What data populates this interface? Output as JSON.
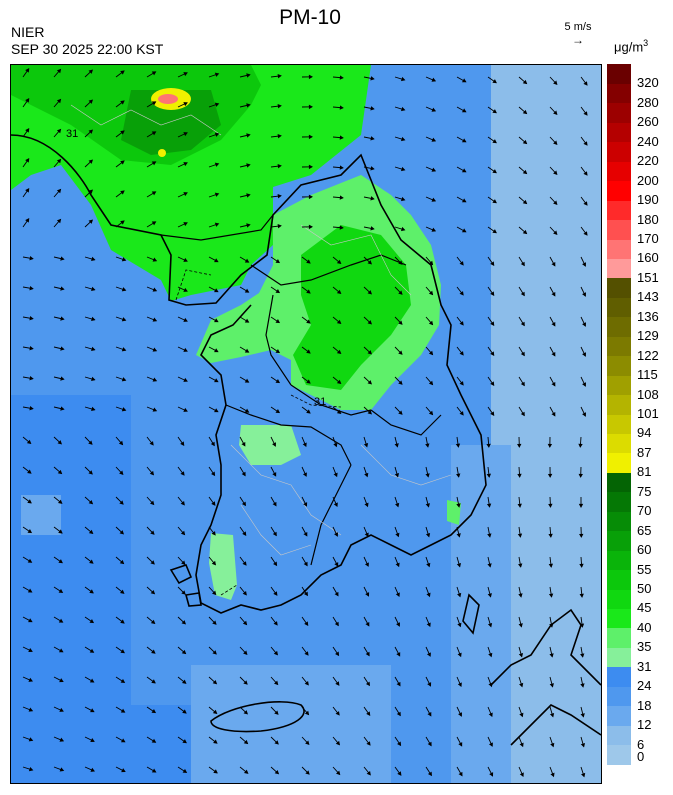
{
  "header": {
    "title": "PM-10",
    "org": "NIER",
    "datetime": "SEP 30 2025 22:00 KST",
    "wind_ref_label": "5 m/s",
    "unit_base": "μg/m",
    "unit_exp": "3"
  },
  "map": {
    "contour_labels": [
      "31",
      "31"
    ]
  },
  "legend": {
    "levels": [
      {
        "label": "0",
        "color": "#9ec8ea"
      },
      {
        "label": "6",
        "color": "#8cbdea"
      },
      {
        "label": "12",
        "color": "#6aa9ee"
      },
      {
        "label": "18",
        "color": "#4f98ee"
      },
      {
        "label": "24",
        "color": "#3d8cf0"
      },
      {
        "label": "31",
        "color": "#86f09a"
      },
      {
        "label": "35",
        "color": "#5ef06a"
      },
      {
        "label": "40",
        "color": "#1ae81a"
      },
      {
        "label": "45",
        "color": "#10d810"
      },
      {
        "label": "50",
        "color": "#0cc80c"
      },
      {
        "label": "55",
        "color": "#0ab40a"
      },
      {
        "label": "60",
        "color": "#08a008"
      },
      {
        "label": "65",
        "color": "#068c06"
      },
      {
        "label": "70",
        "color": "#057805"
      },
      {
        "label": "75",
        "color": "#046404"
      },
      {
        "label": "81",
        "color": "#f0f000"
      },
      {
        "label": "87",
        "color": "#dcdc00"
      },
      {
        "label": "94",
        "color": "#c8c800"
      },
      {
        "label": "101",
        "color": "#b4b400"
      },
      {
        "label": "108",
        "color": "#a0a000"
      },
      {
        "label": "115",
        "color": "#8c8c00"
      },
      {
        "label": "122",
        "color": "#7c7a00"
      },
      {
        "label": "129",
        "color": "#6e6c00"
      },
      {
        "label": "136",
        "color": "#605e00"
      },
      {
        "label": "143",
        "color": "#545000"
      },
      {
        "label": "151",
        "color": "#ff9a9a"
      },
      {
        "label": "160",
        "color": "#ff7474"
      },
      {
        "label": "170",
        "color": "#ff5050"
      },
      {
        "label": "180",
        "color": "#ff2a2a"
      },
      {
        "label": "190",
        "color": "#ff0000"
      },
      {
        "label": "200",
        "color": "#e60000"
      },
      {
        "label": "220",
        "color": "#cc0000"
      },
      {
        "label": "240",
        "color": "#b40000"
      },
      {
        "label": "260",
        "color": "#9c0000"
      },
      {
        "label": "280",
        "color": "#840000"
      },
      {
        "label": "320",
        "color": "#6a0000"
      }
    ]
  }
}
